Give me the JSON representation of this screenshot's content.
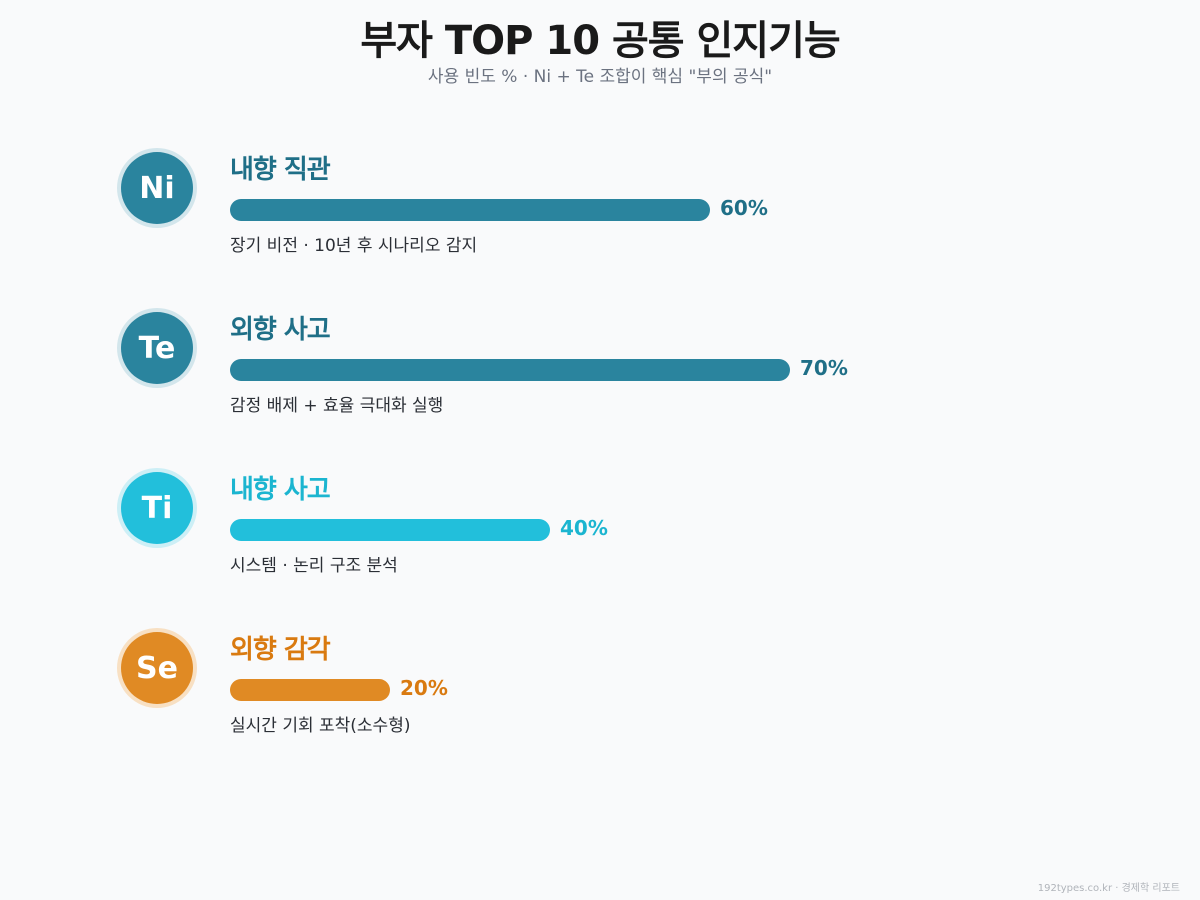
{
  "title": "부자 TOP 10 공통 인지기능",
  "subtitle": "사용 빈도 % · Ni + Te 조합이 핵심 \"부의 공식\"",
  "footer": "192types.co.kr · 경제학 리포트",
  "chart_data": {
    "type": "bar",
    "orientation": "horizontal",
    "xlim": [
      0,
      100
    ],
    "unit": "%",
    "categories": [
      "Ni",
      "Te",
      "Ti",
      "Se"
    ],
    "values": [
      60,
      70,
      40,
      20
    ],
    "items": [
      {
        "code": "Ni",
        "name": "내향 직관",
        "value": 60,
        "value_label": "60%",
        "desc": "장기 비전 · 10년 후 시나리오 감지",
        "color": "#2a849e",
        "text_color": "#1f6f87",
        "ring": "#d3e6ec"
      },
      {
        "code": "Te",
        "name": "외향 사고",
        "value": 70,
        "value_label": "70%",
        "desc": "감정 배제 + 효율 극대화 실행",
        "color": "#2a849e",
        "text_color": "#1f6f87",
        "ring": "#d3e6ec"
      },
      {
        "code": "Ti",
        "name": "내향 사고",
        "value": 40,
        "value_label": "40%",
        "desc": "시스템 · 논리 구조 분석",
        "color": "#22bfdb",
        "text_color": "#1bb5d0",
        "ring": "#cdeff6"
      },
      {
        "code": "Se",
        "name": "외향 감각",
        "value": 20,
        "value_label": "20%",
        "desc": "실시간 기회 포착(소수형)",
        "color": "#e08a24",
        "text_color": "#d97a10",
        "ring": "#f8e0c3"
      }
    ]
  }
}
